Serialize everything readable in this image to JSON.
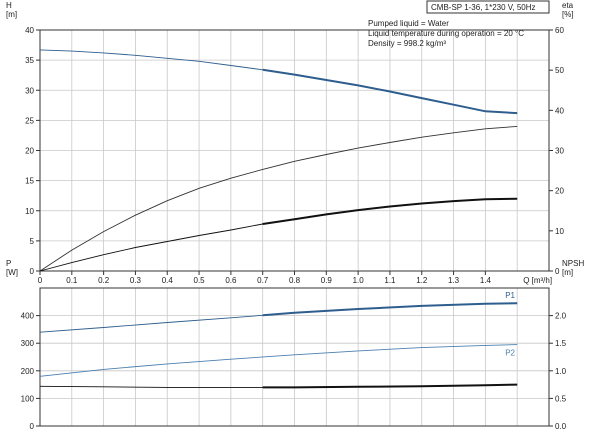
{
  "title_box": "CMB-SP 1-36, 1*230 V, 50Hz",
  "info_lines": [
    "Pumped liquid = Water",
    "Liquid temperature during operation = 20 °C",
    "Density = 998.2 kg/m³"
  ],
  "chart_data": [
    {
      "type": "line",
      "title": "",
      "xlabel": "Q [m³/h]",
      "xlim": [
        0,
        1.6
      ],
      "x_ticks": [
        "0",
        "0.1",
        "0.2",
        "0.3",
        "0.4",
        "0.5",
        "0.6",
        "0.7",
        "0.8",
        "0.9",
        "1.0",
        "1.1",
        "1.2",
        "1.3",
        "1.4"
      ],
      "y_left": {
        "label_line1": "H",
        "label_line2": "[m]",
        "lim": [
          0,
          40
        ],
        "ticks": [
          "0",
          "5",
          "10",
          "15",
          "20",
          "25",
          "30",
          "35",
          "40"
        ]
      },
      "y_right": {
        "label_line1": "eta",
        "label_line2": "[%]",
        "lim": [
          0,
          60
        ],
        "ticks": [
          "0",
          "10",
          "20",
          "30",
          "40",
          "50",
          "60"
        ]
      },
      "grid": true,
      "series": [
        {
          "axis": "left",
          "color": "#2e5e8e",
          "x": [
            0,
            0.1,
            0.2,
            0.3,
            0.4,
            0.5,
            0.6,
            0.7,
            0.8,
            0.9,
            1.0,
            1.1,
            1.2,
            1.3,
            1.4,
            1.5
          ],
          "y": [
            36.7,
            36.5,
            36.2,
            35.8,
            35.3,
            34.8,
            34.1,
            33.4,
            32.6,
            31.7,
            30.8,
            29.8,
            28.7,
            27.6,
            26.5,
            26.2
          ],
          "bold_from": 0.7
        },
        {
          "axis": "right",
          "color": "#333333",
          "x": [
            0,
            0.1,
            0.2,
            0.3,
            0.4,
            0.5,
            0.6,
            0.7,
            0.8,
            0.9,
            1.0,
            1.1,
            1.2,
            1.3,
            1.4,
            1.5
          ],
          "y": [
            0,
            5.2,
            9.8,
            13.9,
            17.5,
            20.6,
            23.1,
            25.3,
            27.3,
            29.0,
            30.6,
            32.0,
            33.3,
            34.4,
            35.4,
            36.0
          ],
          "bold_from": null
        },
        {
          "axis": "left",
          "color": "#111111",
          "x": [
            0,
            0.1,
            0.2,
            0.3,
            0.4,
            0.5,
            0.6,
            0.7,
            0.8,
            0.9,
            1.0,
            1.1,
            1.2,
            1.3,
            1.4,
            1.5
          ],
          "y": [
            0,
            1.4,
            2.7,
            3.9,
            4.9,
            5.9,
            6.8,
            7.8,
            8.6,
            9.4,
            10.1,
            10.7,
            11.2,
            11.6,
            11.9,
            12.0
          ],
          "bold_from": 0.7
        }
      ]
    },
    {
      "type": "line",
      "title": "",
      "xlim": [
        0,
        1.6
      ],
      "y_left": {
        "label_line1": "P",
        "label_line2": "[W]",
        "lim": [
          0,
          500
        ],
        "ticks": [
          "0",
          "100",
          "200",
          "300",
          "400"
        ]
      },
      "y_right": {
        "label_line1": "NPSH",
        "label_line2": "[m]",
        "lim": [
          0,
          2.5
        ],
        "ticks": [
          "0.0",
          "0.5",
          "1.0",
          "1.5",
          "2.0"
        ]
      },
      "grid": true,
      "series": [
        {
          "name": "P1",
          "axis": "left",
          "color": "#2e5e8e",
          "x": [
            0,
            0.2,
            0.4,
            0.6,
            0.8,
            1.0,
            1.2,
            1.4,
            1.5
          ],
          "y": [
            340,
            357,
            375,
            392,
            410,
            424,
            435,
            443,
            445
          ],
          "bold_from": 0.7
        },
        {
          "name": "P2",
          "axis": "left",
          "color": "#4a7fb0",
          "x": [
            0,
            0.2,
            0.4,
            0.6,
            0.8,
            1.0,
            1.2,
            1.4,
            1.5
          ],
          "y": [
            180,
            205,
            225,
            242,
            258,
            272,
            284,
            292,
            295
          ],
          "bold_from": null
        },
        {
          "axis": "right",
          "color": "#111111",
          "x": [
            0,
            0.2,
            0.4,
            0.6,
            0.8,
            1.0,
            1.2,
            1.4,
            1.5
          ],
          "y": [
            0.72,
            0.71,
            0.7,
            0.7,
            0.7,
            0.71,
            0.72,
            0.74,
            0.75
          ],
          "bold_from": 0.7
        }
      ]
    }
  ]
}
